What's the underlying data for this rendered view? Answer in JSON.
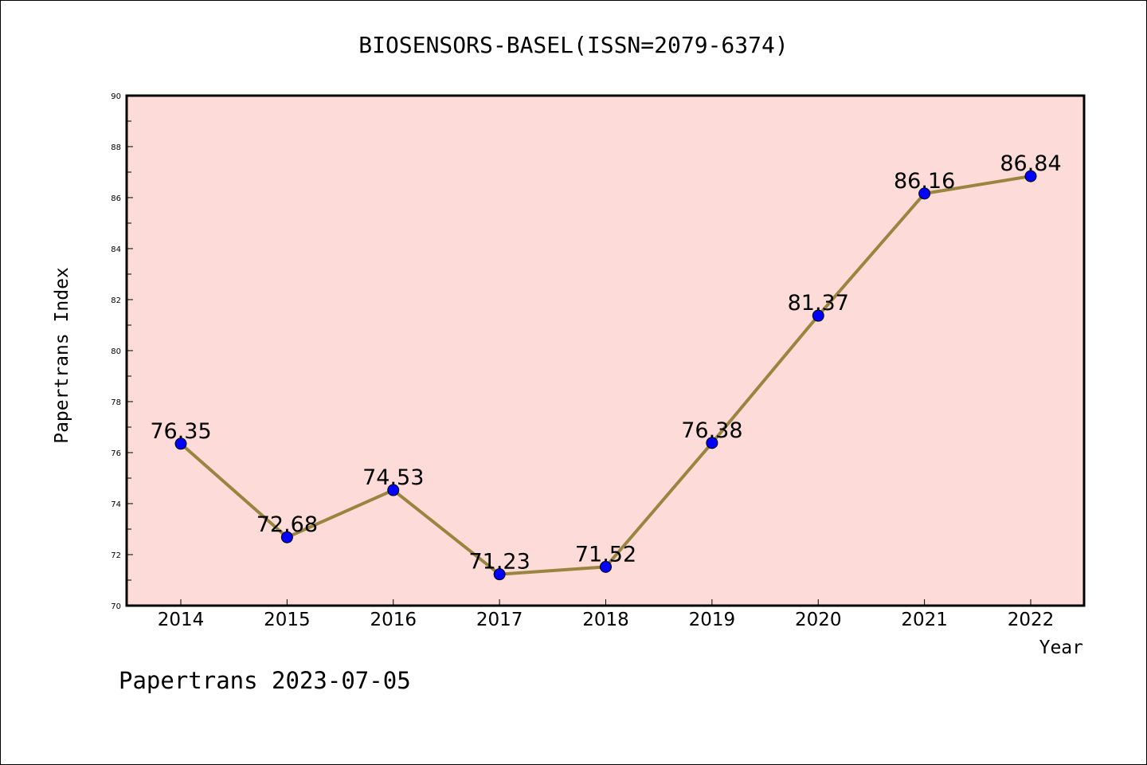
{
  "chart_data": {
    "type": "line",
    "title": "BIOSENSORS-BASEL(ISSN=2079-6374)",
    "xlabel": "Year",
    "ylabel": "Papertrans Index",
    "categories": [
      "2014",
      "2015",
      "2016",
      "2017",
      "2018",
      "2019",
      "2020",
      "2021",
      "2022"
    ],
    "values": [
      76.35,
      72.68,
      74.53,
      71.23,
      71.52,
      76.38,
      81.37,
      86.16,
      86.84
    ],
    "data_labels": [
      "76.35",
      "72.68",
      "74.53",
      "71.23",
      "71.52",
      "76.38",
      "81.37",
      "86.16",
      "86.84"
    ],
    "ylim": [
      70,
      90
    ],
    "yticks": [
      "70",
      "72",
      "74",
      "76",
      "78",
      "80",
      "82",
      "84",
      "86",
      "88",
      "90"
    ],
    "grid": false,
    "legend": "none",
    "colors": {
      "plot_background": "#fddbd8",
      "line": "#9a8540",
      "marker": "#0000ff"
    }
  },
  "footer": {
    "watermark": "Papertrans 2023-07-05"
  }
}
